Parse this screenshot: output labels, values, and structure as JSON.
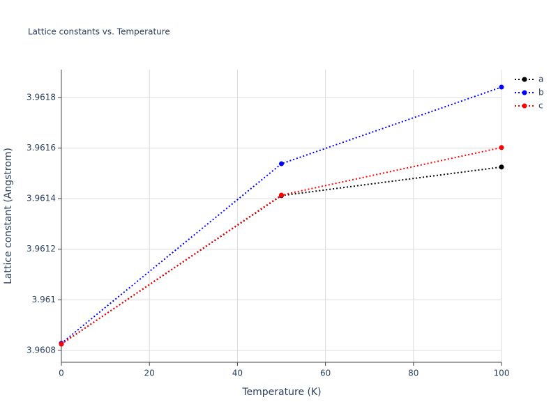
{
  "chart_data": {
    "type": "line",
    "title": "Lattice constants vs. Temperature",
    "x_label": "Temperature (K)",
    "y_label": "Lattice constant (Angstrom)",
    "x": [
      0,
      50,
      100
    ],
    "series": [
      {
        "name": "a",
        "color": "#000000",
        "values": [
          3.960825,
          3.961412,
          3.961525
        ]
      },
      {
        "name": "b",
        "color": "#0000ff",
        "values": [
          3.960828,
          3.961538,
          3.961841
        ]
      },
      {
        "name": "c",
        "color": "#ff0000",
        "values": [
          3.960825,
          3.961414,
          3.961602
        ]
      }
    ],
    "xlim": [
      0,
      100
    ],
    "xticks": [
      0,
      20,
      40,
      60,
      80,
      100
    ],
    "ylim": [
      3.960753,
      3.96191
    ],
    "yticks": [
      3.9608,
      3.961,
      3.9612,
      3.9614,
      3.9616,
      3.9618
    ],
    "grid": true,
    "legend": "top-right"
  }
}
